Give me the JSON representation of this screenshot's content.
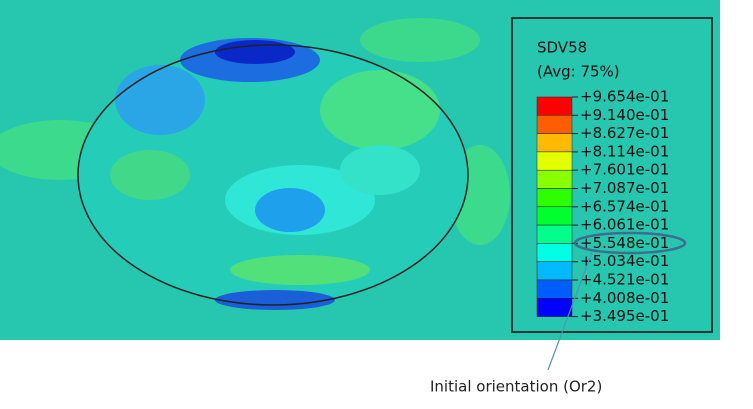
{
  "legend": {
    "title": "SDV58",
    "subtitle": "(Avg: 75%)",
    "labels": [
      "+9.654e-01",
      "+9.140e-01",
      "+8.627e-01",
      "+8.114e-01",
      "+7.601e-01",
      "+7.087e-01",
      "+6.574e-01",
      "+6.061e-01",
      "+5.548e-01",
      "+5.034e-01",
      "+4.521e-01",
      "+4.008e-01",
      "+3.495e-01"
    ]
  },
  "annotation": "Initial orientation (Or2)"
}
